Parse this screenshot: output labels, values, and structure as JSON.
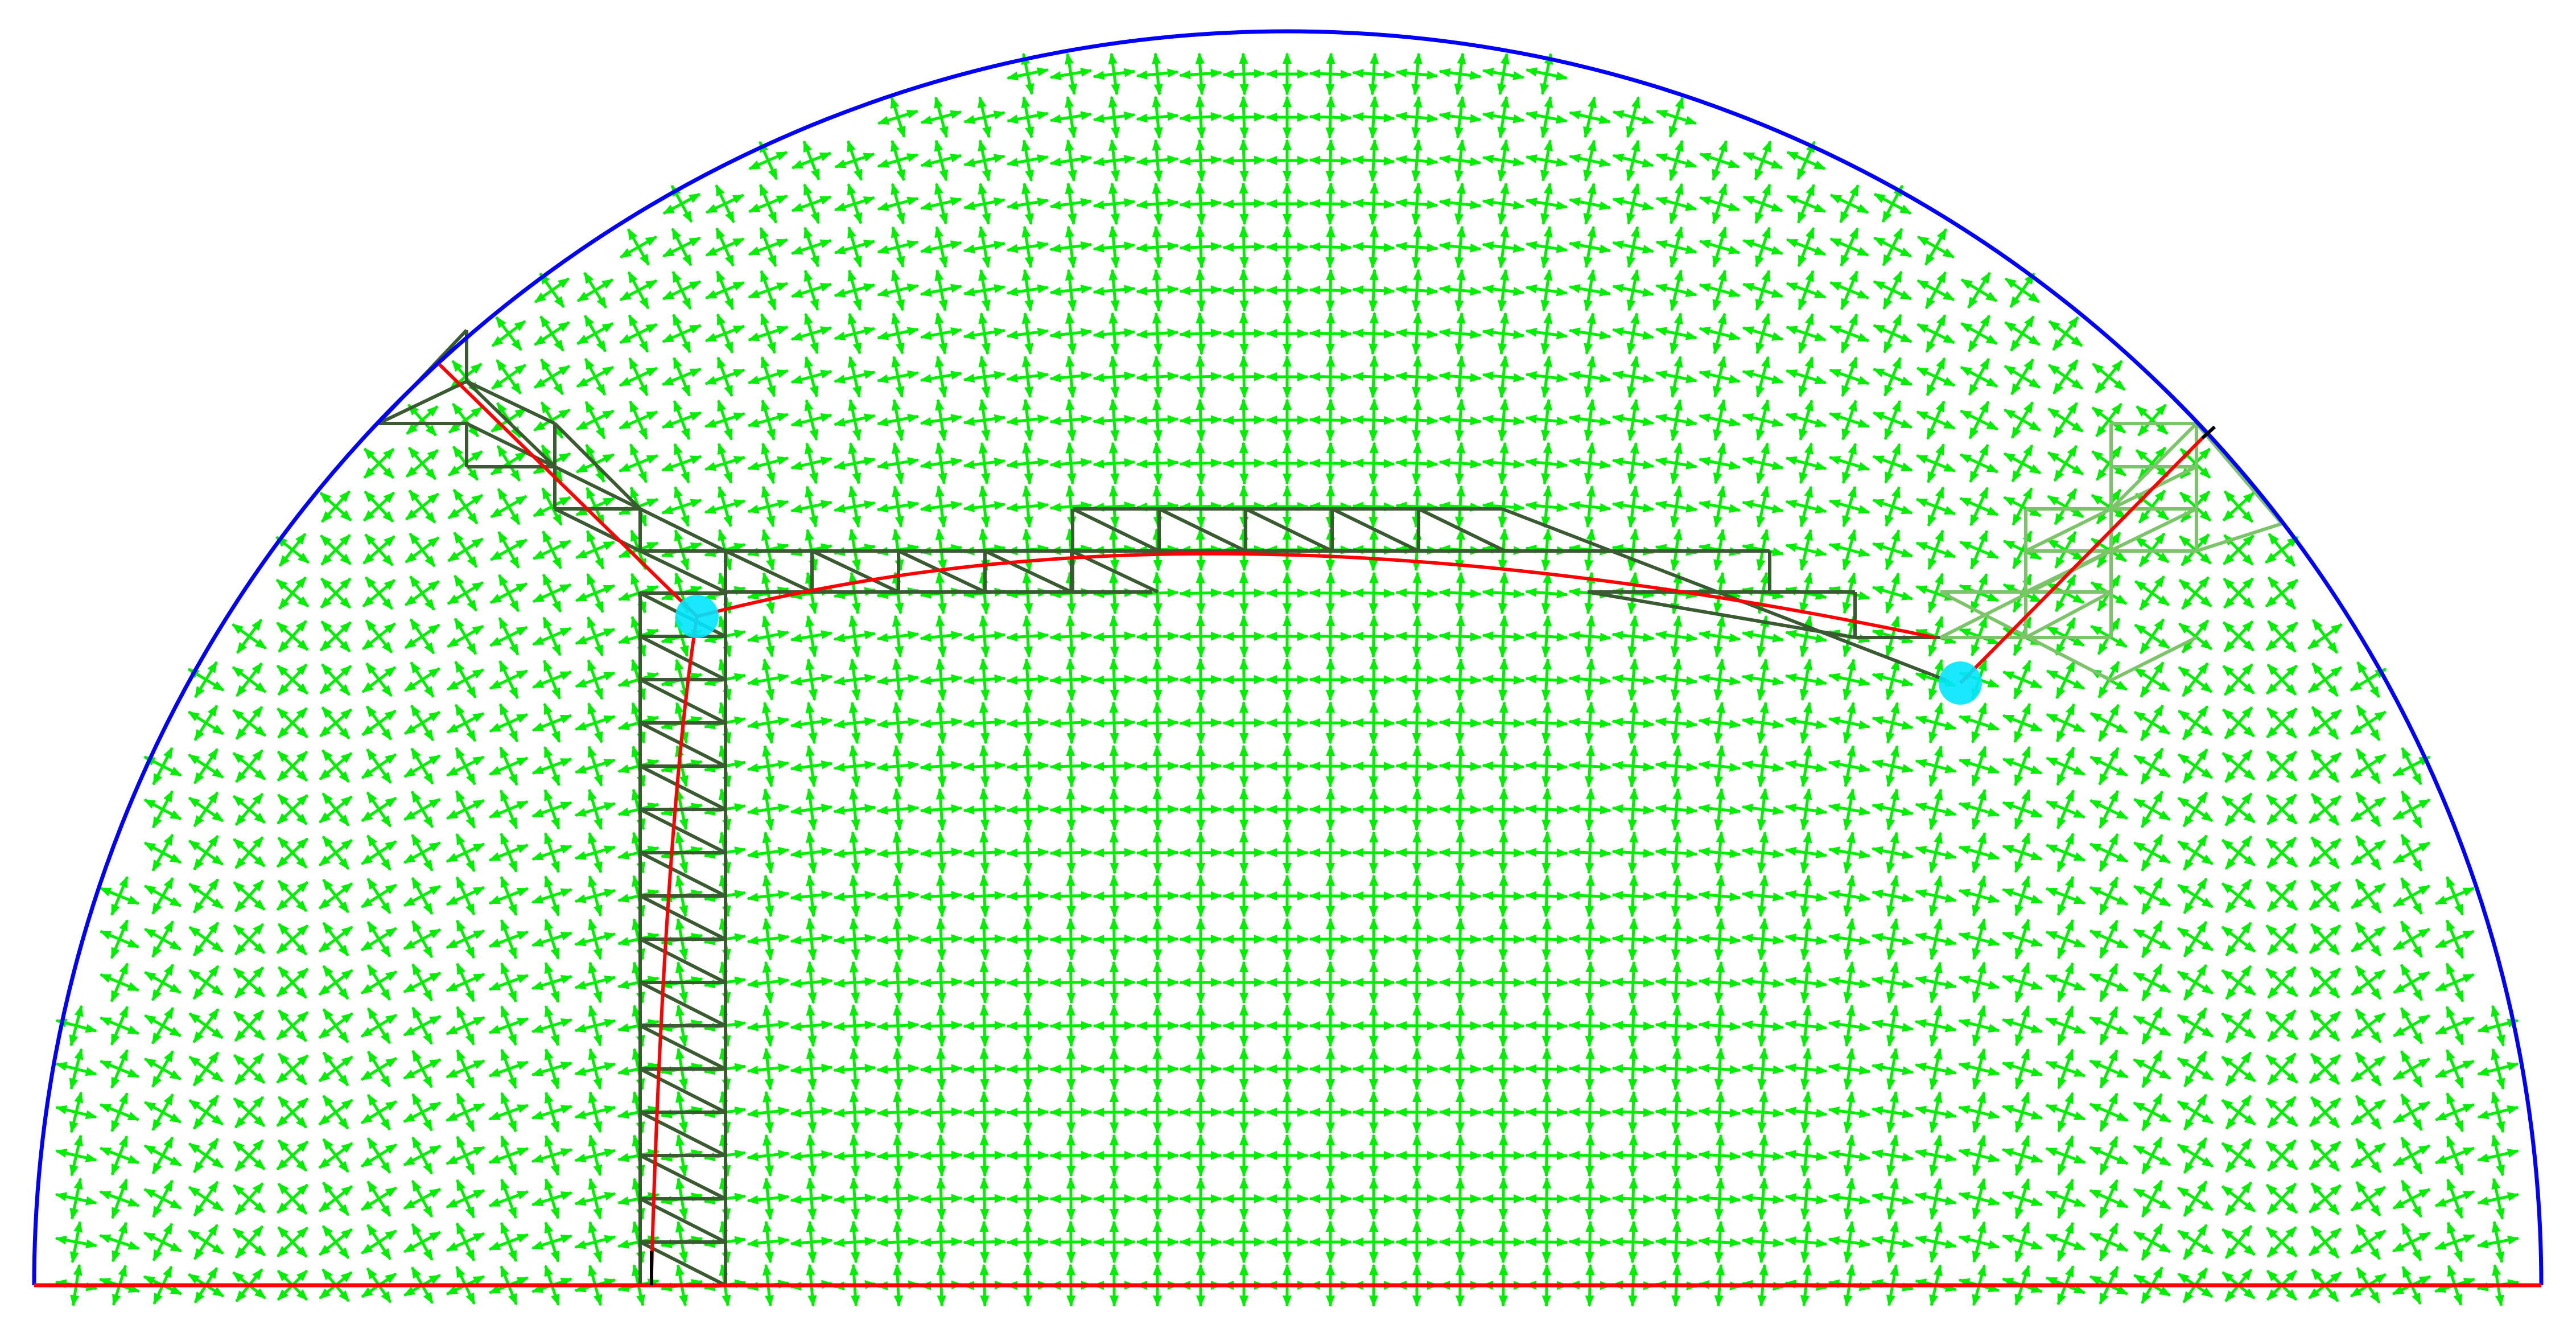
{
  "colors": {
    "background": "#ffffff",
    "boundary_arc": "#0000ff",
    "boundary_base": "#ff0000",
    "cross_field": "#00ee00",
    "mesh_dark": "#3a5a32",
    "mesh_light": "#7cc46a",
    "curve": "#ff0000",
    "singularity": "#00e5ff",
    "stub": "#000000"
  },
  "icons": {
    "cross_glyph": "cross-field-arrow-icon",
    "singularity_marker": "singularity-point-icon"
  },
  "diagram": {
    "description_kind": "semicircle domain with cross field, singularities, separatrix curves and quad strips",
    "singularity_count": 2
  }
}
